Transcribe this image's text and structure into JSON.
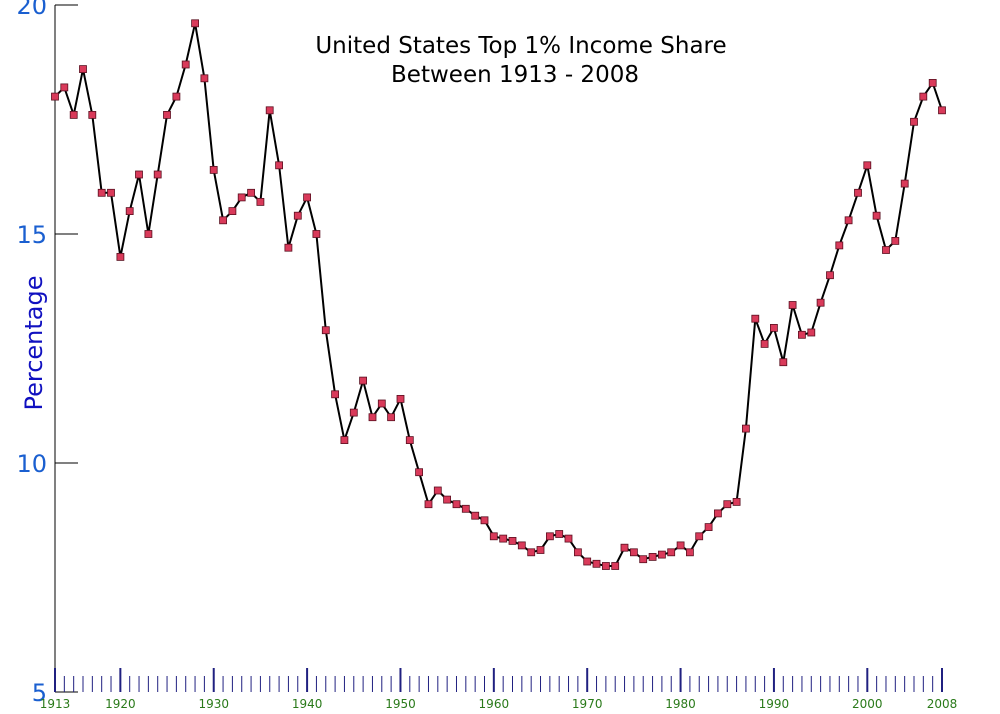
{
  "chart_data": {
    "type": "line",
    "title": [
      "United States Top 1% Income Share",
      "Between 1913 - 2008"
    ],
    "ylabel": "Percentage",
    "xlabel": "",
    "xlim": [
      1913,
      2008
    ],
    "ylim": [
      5,
      20
    ],
    "y_ticks": [
      "5",
      "10",
      "15",
      "20"
    ],
    "x_tick_labels": [
      "1913",
      "1920",
      "1930",
      "1940",
      "1950",
      "1960",
      "1970",
      "1980",
      "1990",
      "2000",
      "2008"
    ],
    "grid": false,
    "colors": {
      "line": "#000000",
      "marker": "#d93a5a",
      "marker_edge": "#5a1020",
      "axis": "#000000",
      "tick": "#202080"
    },
    "series": [
      {
        "x": [
          1913,
          1914,
          1915,
          1916,
          1917,
          1918,
          1919,
          1920,
          1921,
          1922,
          1923,
          1924,
          1925,
          1926,
          1927,
          1928,
          1929,
          1930,
          1931,
          1932,
          1933,
          1934,
          1935,
          1936,
          1937,
          1938,
          1939,
          1940,
          1941,
          1942,
          1943,
          1944,
          1945,
          1946,
          1947,
          1948,
          1949,
          1950,
          1951,
          1952,
          1953,
          1954,
          1955,
          1956,
          1957,
          1958,
          1959,
          1960,
          1961,
          1962,
          1963,
          1964,
          1965,
          1966,
          1967,
          1968,
          1969,
          1970,
          1971,
          1972,
          1973,
          1974,
          1975,
          1976,
          1977,
          1978,
          1979,
          1980,
          1981,
          1982,
          1983,
          1984,
          1985,
          1986,
          1987,
          1988,
          1989,
          1990,
          1991,
          1992,
          1993,
          1994,
          1995,
          1996,
          1997,
          1998,
          1999,
          2000,
          2001,
          2002,
          2003,
          2004,
          2005,
          2006,
          2007,
          2008
        ],
        "values": [
          18.0,
          18.2,
          17.6,
          18.6,
          17.6,
          15.9,
          15.9,
          14.5,
          15.5,
          16.3,
          15.0,
          16.3,
          17.6,
          18.0,
          18.7,
          19.6,
          18.4,
          16.4,
          15.3,
          15.5,
          15.8,
          15.9,
          15.7,
          17.7,
          16.5,
          14.7,
          15.4,
          15.8,
          15.0,
          12.9,
          11.5,
          10.5,
          11.1,
          11.8,
          11.0,
          11.3,
          11.0,
          11.4,
          10.5,
          9.8,
          9.1,
          9.4,
          9.2,
          9.1,
          9.0,
          8.85,
          8.75,
          8.4,
          8.35,
          8.3,
          8.2,
          8.05,
          8.1,
          8.4,
          8.45,
          8.35,
          8.05,
          7.85,
          7.8,
          7.75,
          7.75,
          8.15,
          8.05,
          7.9,
          7.95,
          8.0,
          8.05,
          8.2,
          8.05,
          8.4,
          8.6,
          8.9,
          9.1,
          9.15,
          10.75,
          13.15,
          12.6,
          12.95,
          12.2,
          13.45,
          12.8,
          12.85,
          13.5,
          14.1,
          14.75,
          15.3,
          15.9,
          16.5,
          15.4,
          14.65,
          14.85,
          16.1,
          17.45,
          18.0,
          18.3,
          17.7
        ]
      }
    ]
  }
}
